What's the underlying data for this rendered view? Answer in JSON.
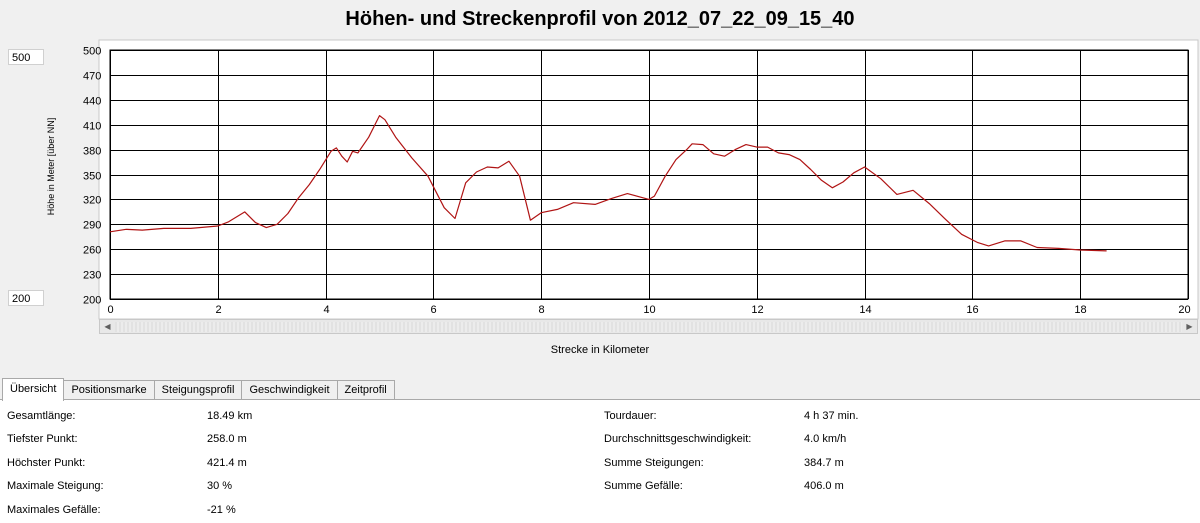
{
  "window": {
    "title": "Höhen- und Streckenprofil von 2012_07_22_09_15_40",
    "y_max_input": "500",
    "y_min_input": "200"
  },
  "chart_data": {
    "type": "line",
    "title": "Höhen- und Streckenprofil von 2012_07_22_09_15_40",
    "xlabel": "Strecke in Kilometer",
    "ylabel": "Höhe in Meter [über NN]",
    "xlim": [
      0,
      20
    ],
    "ylim": [
      200,
      500
    ],
    "x_ticks": [
      "0",
      "2",
      "4",
      "6",
      "8",
      "10",
      "12",
      "14",
      "16",
      "18",
      "20"
    ],
    "y_ticks": [
      "500",
      "470",
      "440",
      "410",
      "380",
      "350",
      "320",
      "290",
      "260",
      "230",
      "200"
    ],
    "grid": true,
    "line_color": "#b01414",
    "series": [
      {
        "x": [
          0,
          0.3,
          0.6,
          1,
          1.5,
          2,
          2.2,
          2.5,
          2.7,
          2.9,
          3.1,
          3.3,
          3.5,
          3.7,
          3.9,
          4.1,
          4.2,
          4.3,
          4.4,
          4.5,
          4.6,
          4.8,
          5.0,
          5.1,
          5.3,
          5.6,
          5.9,
          6.2,
          6.4,
          6.6,
          6.8,
          7.0,
          7.2,
          7.4,
          7.6,
          7.8,
          8.0,
          8.3,
          8.6,
          9.0,
          9.3,
          9.6,
          10.0,
          10.1,
          10.3,
          10.5,
          10.7,
          10.8,
          11.0,
          11.2,
          11.4,
          11.6,
          11.8,
          12.0,
          12.2,
          12.4,
          12.6,
          12.8,
          13.0,
          13.2,
          13.4,
          13.6,
          13.8,
          14.0,
          14.3,
          14.6,
          14.9,
          15.2,
          15.5,
          15.8,
          16.1,
          16.3,
          16.6,
          16.9,
          17.2,
          17.6,
          18.0,
          18.49
        ],
        "y": [
          281,
          284,
          283,
          285,
          285,
          288,
          293,
          305,
          292,
          286,
          290,
          303,
          322,
          338,
          357,
          378,
          382,
          372,
          365,
          378,
          376,
          395,
          421,
          416,
          395,
          370,
          348,
          310,
          297,
          340,
          353,
          359,
          358,
          366,
          348,
          295,
          304,
          308,
          316,
          314,
          321,
          327,
          320,
          324,
          348,
          368,
          380,
          387,
          386,
          375,
          372,
          380,
          386,
          383,
          383,
          376,
          374,
          368,
          356,
          343,
          334,
          341,
          352,
          359,
          345,
          326,
          331,
          315,
          296,
          278,
          268,
          264,
          270,
          270,
          262,
          261,
          259,
          258
        ]
      }
    ]
  },
  "scroll": {
    "left_arrow": "◀",
    "right_arrow": "▶"
  },
  "tabs": [
    {
      "label": "Übersicht"
    },
    {
      "label": "Positionsmarke"
    },
    {
      "label": "Steigungsprofil"
    },
    {
      "label": "Geschwindigkeit"
    },
    {
      "label": "Zeitprofil"
    }
  ],
  "stats": {
    "left": [
      {
        "label": "Gesamtlänge:",
        "value": "18.49 km"
      },
      {
        "label": "Tiefster Punkt:",
        "value": "258.0 m"
      },
      {
        "label": "Höchster Punkt:",
        "value": "421.4 m"
      },
      {
        "label": "Maximale Steigung:",
        "value": "30 %"
      },
      {
        "label": "Maximales Gefälle:",
        "value": "-21 %"
      }
    ],
    "right": [
      {
        "label": "Tourdauer:",
        "value": "4 h 37 min."
      },
      {
        "label": "Durchschnittsgeschwindigkeit:",
        "value": "4.0 km/h"
      },
      {
        "label": "Summe Steigungen:",
        "value": "384.7 m"
      },
      {
        "label": "Summe Gefälle:",
        "value": "406.0 m"
      }
    ]
  }
}
